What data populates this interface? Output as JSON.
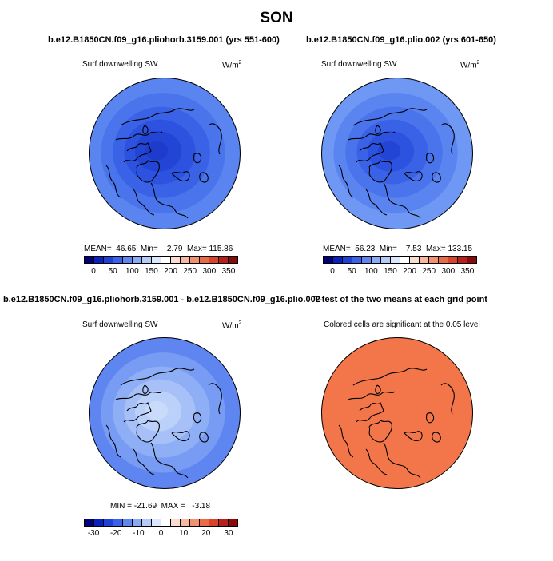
{
  "title": "SON",
  "panels": [
    {
      "title": "b.e12.B1850CN.f09_g16.pliohorb.3159.001 (yrs 551-600)",
      "variable": "Surf downwelling SW",
      "units": "W/m",
      "units_sup": "2",
      "stats": "MEAN=  46.65  Min=    2.79  Max= 115.86",
      "colorbar": {
        "colors": [
          "#00007a",
          "#0a1fbf",
          "#1f3fd9",
          "#3a62e8",
          "#5f86f0",
          "#89aaf5",
          "#b4cbf9",
          "#dbe7fc",
          "#ffffff",
          "#fbdcd0",
          "#f8b8a0",
          "#f3906f",
          "#ec6a45",
          "#d9432a",
          "#b81f1a",
          "#8a0a0a"
        ],
        "ticks": [
          "0",
          "50",
          "100",
          "150",
          "200",
          "250",
          "300",
          "350"
        ]
      },
      "map_colors": [
        "#5a84f0",
        "#4a74ec",
        "#3a62e6",
        "#2c52df",
        "#2245d6",
        "#1e3ccc"
      ]
    },
    {
      "title": "b.e12.B1850CN.f09_g16.plio.002 (yrs 601-650)",
      "variable": "Surf downwelling SW",
      "units": "W/m",
      "units_sup": "2",
      "stats": "MEAN=  56.23  Min=    7.53  Max= 133.15",
      "colorbar": {
        "colors": [
          "#00007a",
          "#0a1fbf",
          "#1f3fd9",
          "#3a62e8",
          "#5f86f0",
          "#89aaf5",
          "#b4cbf9",
          "#dbe7fc",
          "#ffffff",
          "#fbdcd0",
          "#f8b8a0",
          "#f3906f",
          "#ec6a45",
          "#d9432a",
          "#b81f1a",
          "#8a0a0a"
        ],
        "ticks": [
          "0",
          "50",
          "100",
          "150",
          "200",
          "250",
          "300",
          "350"
        ]
      },
      "map_colors": [
        "#6f97f4",
        "#5a84f0",
        "#4a74ec",
        "#3a62e6",
        "#2c52df",
        "#2245d6"
      ]
    },
    {
      "title": "b.e12.B1850CN.f09_g16.pliohorb.3159.001 - b.e12.B1850CN.f09_g16.plio.002",
      "variable": "Surf downwelling SW",
      "units": "W/m",
      "units_sup": "2",
      "stats": "MIN = -21.69  MAX =   -3.18",
      "colorbar": {
        "colors": [
          "#00007a",
          "#0a1fbf",
          "#1f3fd9",
          "#3a62e8",
          "#5f86f0",
          "#89aaf5",
          "#b4cbf9",
          "#dbe7fc",
          "#ffffff",
          "#fbdcd0",
          "#f8b8a0",
          "#f3906f",
          "#ec6a45",
          "#d9432a",
          "#b81f1a",
          "#8a0a0a"
        ],
        "ticks": [
          "-30",
          "-20",
          "-10",
          "0",
          "10",
          "20",
          "30"
        ]
      },
      "map_colors": [
        "#5f86f0",
        "#789cf3",
        "#8eaef6",
        "#a7c1f8",
        "#bcd1fa",
        "#c9dafb"
      ]
    },
    {
      "title": "T-test of the two means at each grid point",
      "variable": "Colored cells are significant at the 0.05 level",
      "map_colors": [
        "#f2764a"
      ]
    }
  ]
}
